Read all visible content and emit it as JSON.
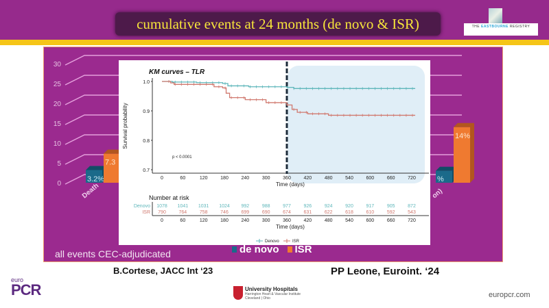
{
  "slide": {
    "title": "cumulative events at 24 months (de novo & ISR)",
    "logo": {
      "name": "THE EASTBOURNE REGISTRY",
      "highlight": "EASTBOURNE"
    },
    "footnote": "all events CEC-adjudicated",
    "citation_left": "B.Cortese, JACC Int ‘23",
    "citation_right": "PP Leone, Euroint. ‘24",
    "footer_logo_left": {
      "small": "euro",
      "big": "PCR"
    },
    "footer_logo_center": {
      "line1": "University Hospitals",
      "line2": "Harrington Heart & Vascular Institute",
      "line3": "Cleveland | Ohio"
    },
    "footer_site": "europcr.com",
    "colors": {
      "purple": "#9b2a8f",
      "yellow": "#f5c518",
      "denovo_bar": "#1b6a8a",
      "isr_bar": "#ef7a30",
      "km_denovo": "#5db6ba",
      "km_isr": "#d0786e"
    }
  },
  "chart_data": [
    {
      "type": "bar",
      "legend": [
        {
          "name": "de novo",
          "color": "#1b6a8a"
        },
        {
          "name": "ISR",
          "color": "#ef7a30"
        }
      ],
      "yticks": [
        "30",
        "25",
        "20",
        "15",
        "10",
        "5",
        "0"
      ],
      "ylim": [
        0,
        30
      ],
      "categories": [
        "Death",
        "on)"
      ],
      "series": [
        {
          "name": "de novo",
          "values": [
            3.2,
            3
          ],
          "labels": [
            "3.2%",
            "%"
          ]
        },
        {
          "name": "ISR",
          "values": [
            7.3,
            14
          ],
          "labels": [
            "7.3",
            "14%"
          ]
        }
      ]
    },
    {
      "type": "line",
      "title": "KM curves – TLR",
      "xlabel": "Time (days)",
      "ylabel": "Survival probability",
      "xlim": [
        0,
        730
      ],
      "ylim": [
        0.68,
        1.01
      ],
      "xticks": [
        "0",
        "60",
        "120",
        "180",
        "240",
        "300",
        "360",
        "420",
        "480",
        "540",
        "600",
        "660",
        "720"
      ],
      "yticks": [
        "1.0",
        "0.9",
        "0.8",
        "0.7"
      ],
      "annotation": "p < 0.0001",
      "vline_x": 360,
      "shaded_region_x": [
        360,
        730
      ],
      "series": [
        {
          "name": "Denovo",
          "color": "#5db6ba",
          "x": [
            0,
            30,
            100,
            175,
            190,
            250,
            360,
            380,
            730
          ],
          "y": [
            1.0,
            0.998,
            0.996,
            0.993,
            0.985,
            0.982,
            0.98,
            0.976,
            0.976
          ]
        },
        {
          "name": "ISR",
          "color": "#d0786e",
          "x": [
            0,
            25,
            35,
            100,
            150,
            175,
            185,
            195,
            240,
            300,
            360,
            375,
            390,
            420,
            480,
            730
          ],
          "y": [
            1.0,
            0.995,
            0.99,
            0.99,
            0.982,
            0.978,
            0.96,
            0.945,
            0.938,
            0.928,
            0.92,
            0.905,
            0.895,
            0.89,
            0.885,
            0.885
          ]
        }
      ],
      "risk_table": {
        "title": "Number at risk",
        "rows": [
          {
            "name": "Denovo",
            "values": [
              "1078",
              "1041",
              "1031",
              "1024",
              "992",
              "988",
              "977",
              "926",
              "924",
              "920",
              "917",
              "905",
              "872"
            ]
          },
          {
            "name": "ISR",
            "values": [
              "790",
              "764",
              "758",
              "746",
              "699",
              "690",
              "674",
              "631",
              "622",
              "618",
              "610",
              "592",
              "543"
            ]
          }
        ]
      }
    }
  ]
}
